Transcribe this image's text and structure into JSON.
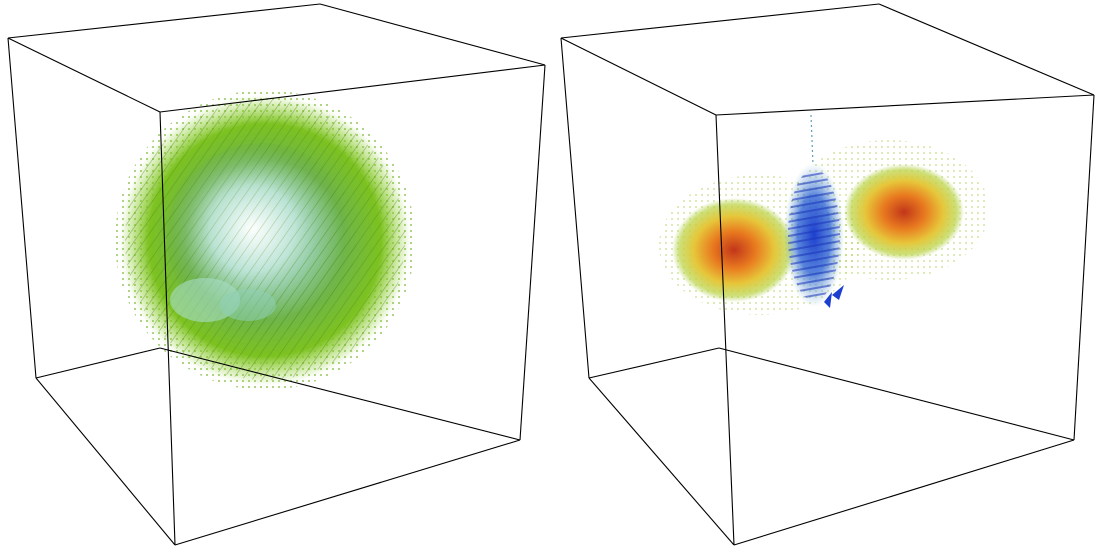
{
  "panels": [
    {
      "id": "left",
      "content": "spherical-shell-vector-field",
      "colors": {
        "outer": "#7cc21f",
        "mid": "#5fa526",
        "inner": "#7fd0a8",
        "core": "#e9f6f0",
        "highlight": "#b7e1d6"
      }
    },
    {
      "id": "right",
      "content": "dipole-vector-field",
      "colors": {
        "core_hot": "#c2361a",
        "mid_hot": "#e87a1f",
        "warm": "#e7c63a",
        "edge": "#a7c93a",
        "center_blue": "#1d3fcf",
        "light_blue": "#7fb3d8"
      }
    }
  ],
  "box_color": "#000000"
}
